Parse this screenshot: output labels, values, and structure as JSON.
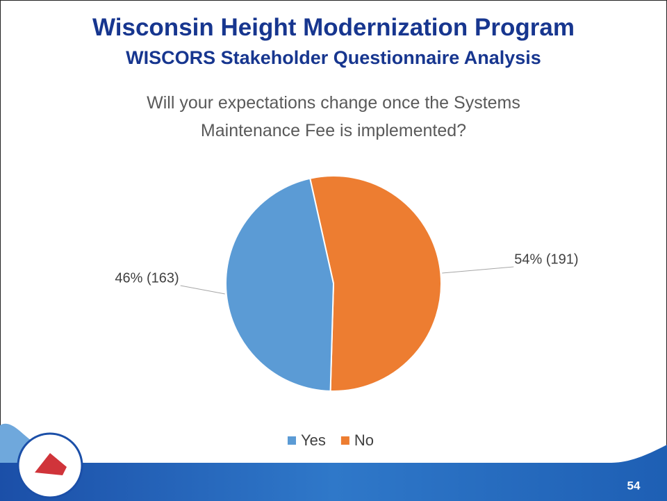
{
  "slide": {
    "title": "Wisconsin Height Modernization Program",
    "subtitle": "WISCORS Stakeholder Questionnaire Analysis",
    "page_number": 54
  },
  "chart_data": {
    "type": "pie",
    "title": "Will your expectations change once the Systems Maintenance Fee is implemented?",
    "categories": [
      "Yes",
      "No"
    ],
    "values": [
      163,
      191
    ],
    "value_labels": [
      "46% (163)",
      "54% (191)"
    ],
    "colors": [
      "#5b9bd5",
      "#ed7d31"
    ],
    "legend": "bottom"
  }
}
